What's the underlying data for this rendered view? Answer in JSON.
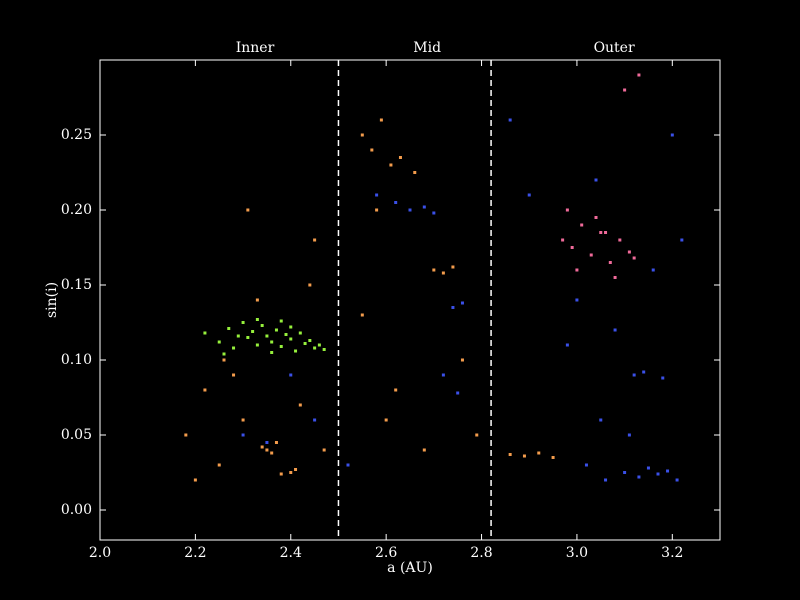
{
  "chart_data": {
    "type": "scatter",
    "xlabel": "a (AU)",
    "ylabel": "sin(i)",
    "xlim": [
      2.0,
      3.3
    ],
    "ylim": [
      -0.02,
      0.3
    ],
    "xticks": [
      {
        "value": 2,
        "label": "2.0"
      },
      2.2,
      2.4,
      2.6,
      2.8,
      {
        "value": 3,
        "label": "3.0"
      },
      3.2
    ],
    "yticks": [
      {
        "value": 0,
        "label": "0.00"
      },
      0.05,
      {
        "value": 0.1,
        "label": "0.10"
      },
      0.15,
      {
        "value": 0.2,
        "label": "0.20"
      },
      0.25
    ],
    "boundaries": [
      2.5,
      2.82
    ],
    "region_labels": [
      {
        "text": "Inner",
        "x": 2.325
      },
      {
        "text": "Mid",
        "x": 2.686
      },
      {
        "text": "Outer",
        "x": 3.078
      }
    ],
    "series": [
      {
        "color": "#f39c4c",
        "x": [
          2.18,
          2.22,
          2.25,
          2.28,
          2.3,
          2.33,
          2.35,
          2.37,
          2.4,
          2.42,
          2.45,
          2.47,
          2.2,
          2.26,
          2.31,
          2.36,
          2.41,
          2.44,
          2.34,
          2.38,
          2.55,
          2.57,
          2.59,
          2.61,
          2.63,
          2.66,
          2.58,
          2.62,
          2.7,
          2.72,
          2.74,
          2.55,
          2.6,
          2.68,
          2.76,
          2.79,
          2.86,
          2.89,
          2.92,
          2.95
        ],
        "values": [
          0.05,
          0.08,
          0.03,
          0.09,
          0.06,
          0.14,
          0.04,
          0.045,
          0.025,
          0.07,
          0.18,
          0.04,
          0.02,
          0.1,
          0.2,
          0.038,
          0.027,
          0.15,
          0.042,
          0.024,
          0.25,
          0.24,
          0.26,
          0.23,
          0.235,
          0.225,
          0.2,
          0.08,
          0.16,
          0.158,
          0.162,
          0.13,
          0.06,
          0.04,
          0.1,
          0.05,
          0.037,
          0.036,
          0.038,
          0.035
        ]
      },
      {
        "color": "#3a50e8",
        "x": [
          3.02,
          3.06,
          3.1,
          3.13,
          3.15,
          3.17,
          3.19,
          3.21,
          3.12,
          3.14,
          3.18,
          3.05,
          3.08,
          3.16,
          3.2,
          3.04,
          3.22,
          3.11,
          2.62,
          2.65,
          2.68,
          2.7,
          2.74,
          2.76,
          2.72,
          2.75,
          2.3,
          2.35,
          2.4,
          2.86,
          2.9,
          2.98,
          3.0,
          2.58,
          2.45,
          2.52
        ],
        "values": [
          0.03,
          0.02,
          0.025,
          0.022,
          0.028,
          0.024,
          0.026,
          0.02,
          0.09,
          0.092,
          0.088,
          0.06,
          0.12,
          0.16,
          0.25,
          0.22,
          0.18,
          0.05,
          0.205,
          0.2,
          0.202,
          0.198,
          0.135,
          0.138,
          0.09,
          0.078,
          0.05,
          0.045,
          0.09,
          0.26,
          0.21,
          0.11,
          0.14,
          0.21,
          0.06,
          0.03
        ]
      },
      {
        "color": "#f06a9a",
        "x": [
          2.97,
          2.99,
          3.01,
          3.03,
          3.05,
          3.07,
          3.09,
          3.11,
          3.0,
          3.04,
          3.08,
          3.12,
          3.1,
          3.13,
          2.98,
          3.06
        ],
        "values": [
          0.18,
          0.175,
          0.19,
          0.17,
          0.185,
          0.165,
          0.18,
          0.172,
          0.16,
          0.195,
          0.155,
          0.168,
          0.28,
          0.29,
          0.2,
          0.185
        ]
      },
      {
        "color": "#96f03c",
        "x": [
          2.22,
          2.25,
          2.27,
          2.28,
          2.3,
          2.31,
          2.32,
          2.33,
          2.34,
          2.35,
          2.36,
          2.37,
          2.38,
          2.39,
          2.4,
          2.41,
          2.42,
          2.43,
          2.44,
          2.45,
          2.46,
          2.47,
          2.29,
          2.33,
          2.36,
          2.4,
          2.26,
          2.38
        ],
        "values": [
          0.118,
          0.112,
          0.121,
          0.108,
          0.125,
          0.115,
          0.119,
          0.11,
          0.123,
          0.116,
          0.112,
          0.12,
          0.109,
          0.117,
          0.114,
          0.106,
          0.118,
          0.111,
          0.113,
          0.108,
          0.11,
          0.107,
          0.116,
          0.127,
          0.105,
          0.122,
          0.104,
          0.126
        ]
      }
    ]
  }
}
